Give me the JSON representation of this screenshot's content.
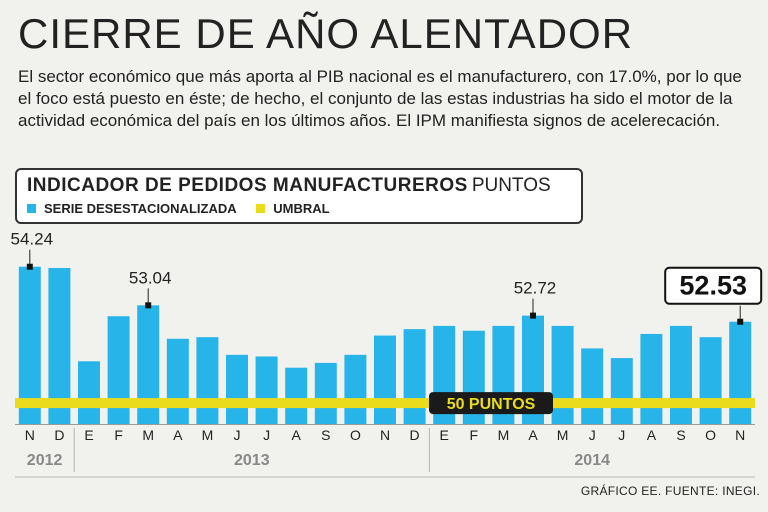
{
  "headline": "CIERRE DE AÑO ALENTADOR",
  "intro": "El sector económico que más aporta al PIB nacional es el manufacturero, con 17.0%, por lo que el foco está puesto en éste; de hecho, el conjunto de las estas industrias ha sido el motor de la actividad económica del país en los últimos años. El IPM manifiesta signos de acelerecación.",
  "legend": {
    "title": "INDICADOR DE PEDIDOS MANUFACTUREROS",
    "unit": "PUNTOS",
    "series_label": "SERIE DESESTACIONALIZADA",
    "threshold_label": "UMBRAL"
  },
  "credit": "GRÁFICO EE. FUENTE: INEGI.",
  "colors": {
    "bar": "#27b5e9",
    "threshold": "#eadc1d",
    "background": "#f1f1ed"
  },
  "chart_data": {
    "type": "bar",
    "title": "INDICADOR DE PEDIDOS MANUFACTUREROS",
    "ylabel": "PUNTOS",
    "categories": [
      "N",
      "D",
      "E",
      "F",
      "M",
      "A",
      "M",
      "J",
      "J",
      "A",
      "S",
      "O",
      "N",
      "D",
      "E",
      "F",
      "M",
      "A",
      "M",
      "J",
      "J",
      "A",
      "S",
      "O",
      "N"
    ],
    "years": [
      {
        "label": "2012",
        "start": 0,
        "count": 2
      },
      {
        "label": "2013",
        "start": 2,
        "count": 12
      },
      {
        "label": "2014",
        "start": 14,
        "count": 11
      }
    ],
    "values": [
      54.24,
      54.2,
      51.3,
      52.7,
      53.04,
      52.0,
      52.05,
      51.5,
      51.45,
      51.1,
      51.25,
      51.5,
      52.1,
      52.3,
      52.4,
      52.25,
      52.4,
      52.72,
      52.4,
      51.7,
      51.4,
      52.15,
      52.4,
      52.05,
      52.53
    ],
    "threshold": {
      "value": 50,
      "label": "50 PUNTOS"
    },
    "annotations": [
      {
        "index": 0,
        "label": "54.24"
      },
      {
        "index": 4,
        "label": "53.04"
      },
      {
        "index": 17,
        "label": "52.72"
      },
      {
        "index": 24,
        "label": "52.53",
        "highlight": true
      }
    ],
    "ylim": [
      49.35,
      55.32
    ]
  }
}
